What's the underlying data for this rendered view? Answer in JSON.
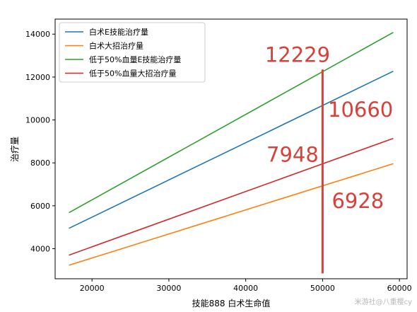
{
  "chart_data": {
    "type": "line",
    "xlabel": "技能888 白术生命值",
    "ylabel": "治疗量",
    "xlim": [
      15200,
      61000
    ],
    "ylim": [
      2600,
      14700
    ],
    "xticks": [
      20000,
      30000,
      40000,
      50000,
      60000
    ],
    "yticks": [
      4000,
      6000,
      8000,
      10000,
      12000,
      14000
    ],
    "xtick_labels": [
      "20000",
      "30000",
      "40000",
      "50000",
      "60000"
    ],
    "ytick_labels": [
      "4000",
      "6000",
      "8000",
      "10000",
      "12000",
      "14000"
    ],
    "grid": false,
    "legend_position": "top-left",
    "series": [
      {
        "name": "白术E技能治疗量",
        "color": "#1f77b4",
        "x": [
          17000,
          59200
        ],
        "y": [
          4950,
          12270
        ]
      },
      {
        "name": "白术大招治疗量",
        "color": "#ff7f0e",
        "x": [
          17000,
          59200
        ],
        "y": [
          3230,
          7960
        ]
      },
      {
        "name": "低于50%血量E技能治疗量",
        "color": "#2ca02c",
        "x": [
          17000,
          59200
        ],
        "y": [
          5680,
          14080
        ]
      },
      {
        "name": "低于50%血量大招治疗量",
        "color": "#d62728",
        "x": [
          17000,
          59200
        ],
        "y": [
          3700,
          9140
        ]
      }
    ],
    "vertical_marker": {
      "x": 50000,
      "y_range": [
        2850,
        12350
      ],
      "color": "#d9403a"
    },
    "annotations": [
      {
        "text": "12229",
        "x": 42500,
        "y": 12700
      },
      {
        "text": "10660",
        "x": 50700,
        "y": 10150
      },
      {
        "text": "7948",
        "x": 42700,
        "y": 8050
      },
      {
        "text": "6928",
        "x": 51200,
        "y": 5900
      }
    ],
    "watermark": "米游社@八重樱cy"
  }
}
